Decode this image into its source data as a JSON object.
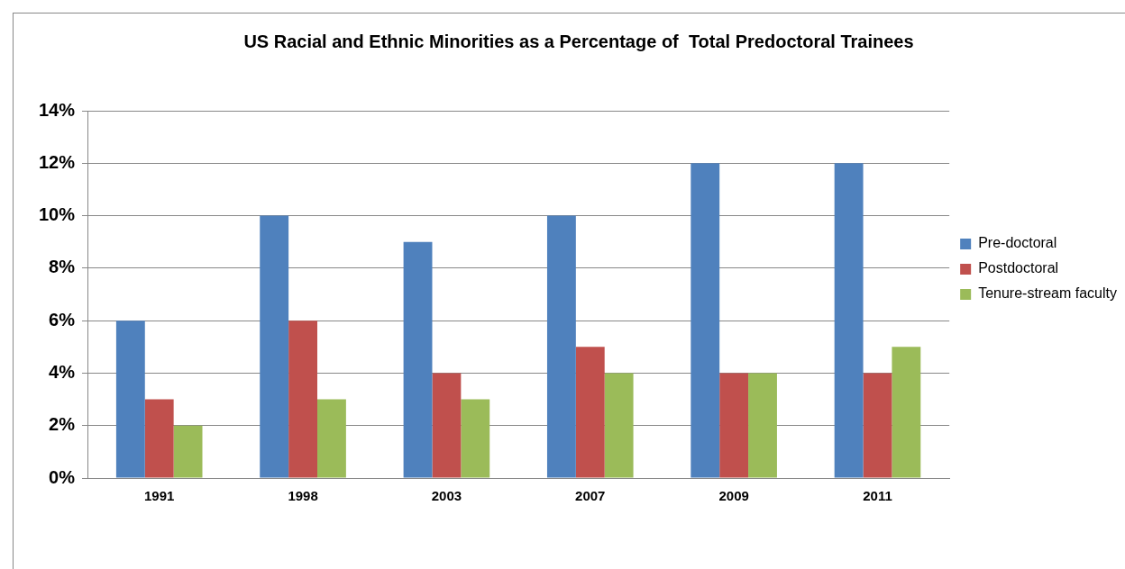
{
  "chart_data": {
    "type": "bar",
    "title": "US Racial and Ethnic Minorities as a Percentage of  Total Predoctoral Trainees",
    "categories": [
      "1991",
      "1998",
      "2003",
      "2007",
      "2009",
      "2011"
    ],
    "series": [
      {
        "name": "Pre-doctoral",
        "color": "#4f81bd",
        "values": [
          6,
          10,
          9,
          10,
          12,
          12
        ]
      },
      {
        "name": "Postdoctoral",
        "color": "#c0504d",
        "values": [
          3,
          6,
          4,
          5,
          4,
          4
        ]
      },
      {
        "name": "Tenure-stream faculty",
        "color": "#9bbb59",
        "values": [
          2,
          3,
          3,
          4,
          4,
          5
        ]
      }
    ],
    "ylim": [
      0,
      14
    ],
    "yticks": [
      {
        "value": 0,
        "label": "0%"
      },
      {
        "value": 2,
        "label": "2%"
      },
      {
        "value": 4,
        "label": "4%"
      },
      {
        "value": 6,
        "label": "6%"
      },
      {
        "value": 8,
        "label": "8%"
      },
      {
        "value": 10,
        "label": "10%"
      },
      {
        "value": 12,
        "label": "12%"
      },
      {
        "value": 14,
        "label": "14%"
      }
    ],
    "grid": "y",
    "legend": "right"
  }
}
